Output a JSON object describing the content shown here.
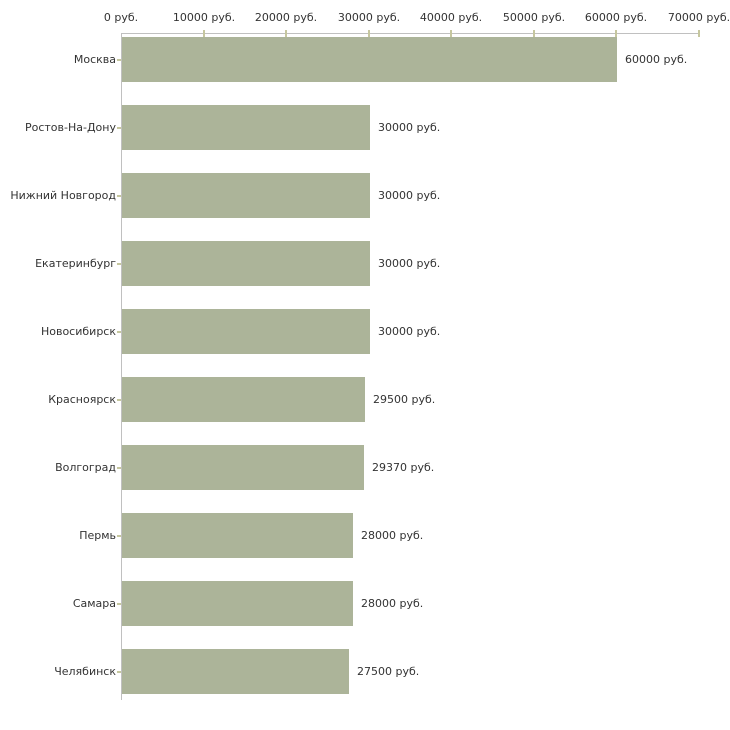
{
  "chart_data": {
    "type": "bar",
    "orientation": "horizontal",
    "title": "",
    "xlabel": "",
    "ylabel": "",
    "xlim": [
      0,
      70000
    ],
    "grid": false,
    "legend": false,
    "categories": [
      "Москва",
      "Ростов-На-Дону",
      "Нижний Новгород",
      "Екатеринбург",
      "Новосибирск",
      "Красноярск",
      "Волгоград",
      "Пермь",
      "Самара",
      "Челябинск"
    ],
    "values": [
      60000,
      30000,
      30000,
      30000,
      30000,
      29500,
      29370,
      28000,
      28000,
      27500
    ],
    "value_labels": [
      "60000 руб.",
      "30000 руб.",
      "30000 руб.",
      "30000 руб.",
      "30000 руб.",
      "29500 руб.",
      "29370 руб.",
      "28000 руб.",
      "28000 руб.",
      "27500 руб."
    ],
    "x_ticks": [
      0,
      10000,
      20000,
      30000,
      40000,
      50000,
      60000,
      70000
    ],
    "x_tick_labels": [
      "0 руб.",
      "10000 руб.",
      "20000 руб.",
      "30000 руб.",
      "40000 руб.",
      "50000 руб.",
      "60000 руб.",
      "70000 руб."
    ],
    "colors": {
      "bar": "#acb499",
      "axis": "#c0c0c0",
      "tick": "#c6c79f",
      "text": "#333333",
      "background": "#ffffff"
    }
  }
}
